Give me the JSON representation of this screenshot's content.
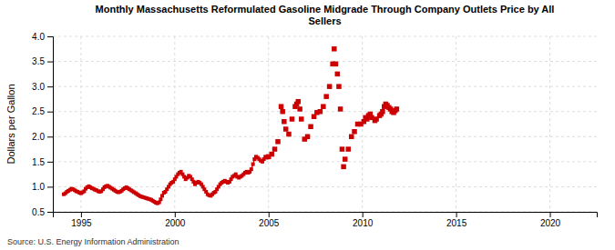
{
  "chart_data": {
    "type": "line",
    "title": "Monthly Massachusetts Reformulated Gasoline Midgrade Through Company Outlets Price by All\nSellers",
    "y_label": "Dollars per Gallon",
    "source": "Source: U.S. Energy Information Administration",
    "xlim": [
      1993.5,
      2022.5
    ],
    "ylim": [
      0.5,
      4.0
    ],
    "xticks": [
      1995,
      2000,
      2005,
      2010,
      2015,
      2020
    ],
    "yticks": [
      0.5,
      {
        "value": 1.0,
        "label": "1.0"
      },
      1.5,
      {
        "value": 2.0,
        "label": "2.0"
      },
      2.5,
      {
        "value": 3.0,
        "label": "3.0"
      },
      3.5,
      {
        "value": 4.0,
        "label": "4.0"
      }
    ],
    "grid": true,
    "series": [
      {
        "type": "line",
        "color": "#cc0000",
        "marker": "square",
        "line_style": "solid",
        "x": [
          1994.08,
          1994.17,
          1994.25,
          1994.33,
          1994.42,
          1994.5,
          1994.58,
          1994.67,
          1994.75,
          1994.83,
          1994.92,
          1995.0,
          1995.08,
          1995.17,
          1995.25,
          1995.33,
          1995.42,
          1995.5,
          1995.58,
          1995.67,
          1995.75,
          1995.83,
          1995.92,
          1996.0,
          1996.08,
          1996.17,
          1996.25,
          1996.33,
          1996.42,
          1996.5,
          1996.58,
          1996.67,
          1996.75,
          1996.83,
          1996.92,
          1997.0,
          1997.08,
          1997.17,
          1997.25,
          1997.33,
          1997.42,
          1997.5,
          1997.58,
          1997.67,
          1997.75,
          1997.83,
          1997.92,
          1998.0,
          1998.08,
          1998.17,
          1998.25,
          1998.33,
          1998.42,
          1998.5,
          1998.58,
          1998.67,
          1998.75,
          1998.83,
          1998.92,
          1999.0,
          1999.08,
          1999.17,
          1999.25,
          1999.33,
          1999.42,
          1999.5,
          1999.58,
          1999.67,
          1999.75,
          1999.83,
          1999.92,
          2000.0,
          2000.08,
          2000.17,
          2000.25,
          2000.33,
          2000.42,
          2000.5,
          2000.58,
          2000.67,
          2000.75,
          2000.83,
          2000.92,
          2001.0,
          2001.08,
          2001.17,
          2001.25,
          2001.33,
          2001.42,
          2001.5,
          2001.58,
          2001.67,
          2001.75,
          2001.83,
          2001.92,
          2002.0,
          2002.08,
          2002.17,
          2002.25,
          2002.33,
          2002.42,
          2002.5,
          2002.58,
          2002.67,
          2002.75,
          2002.83,
          2002.92,
          2003.0,
          2003.08,
          2003.17,
          2003.25,
          2003.33,
          2003.42,
          2003.5,
          2003.58,
          2003.67,
          2003.75,
          2003.83,
          2003.92,
          2004.0,
          2004.08,
          2004.17,
          2004.25,
          2004.33,
          2004.42,
          2004.5,
          2004.58,
          2004.67,
          2004.75,
          2004.83,
          2004.92
        ],
        "values": [
          0.85,
          0.87,
          0.9,
          0.92,
          0.94,
          0.96,
          0.95,
          0.93,
          0.91,
          0.9,
          0.88,
          0.87,
          0.89,
          0.91,
          0.96,
          0.99,
          1.01,
          0.99,
          0.97,
          0.96,
          0.94,
          0.93,
          0.91,
          0.9,
          0.91,
          0.95,
          0.99,
          1.01,
          1.02,
          1.0,
          0.98,
          0.96,
          0.94,
          0.92,
          0.9,
          0.89,
          0.9,
          0.92,
          0.95,
          0.97,
          0.99,
          0.97,
          0.95,
          0.93,
          0.91,
          0.89,
          0.87,
          0.85,
          0.83,
          0.81,
          0.8,
          0.79,
          0.78,
          0.77,
          0.76,
          0.75,
          0.74,
          0.72,
          0.7,
          0.68,
          0.67,
          0.69,
          0.75,
          0.82,
          0.88,
          0.9,
          0.95,
          1.0,
          1.05,
          1.08,
          1.1,
          1.15,
          1.2,
          1.25,
          1.28,
          1.3,
          1.25,
          1.2,
          1.15,
          1.18,
          1.22,
          1.2,
          1.15,
          1.1,
          1.05,
          1.08,
          1.1,
          1.08,
          1.05,
          1.0,
          0.95,
          0.9,
          0.85,
          0.83,
          0.82,
          0.85,
          0.88,
          0.9,
          0.95,
          1.0,
          1.05,
          1.08,
          1.1,
          1.12,
          1.1,
          1.08,
          1.1,
          1.15,
          1.2,
          1.22,
          1.25,
          1.2,
          1.18,
          1.2,
          1.22,
          1.25,
          1.28,
          1.3,
          1.28,
          1.3,
          1.35,
          1.45,
          1.55,
          1.6,
          1.58,
          1.55,
          1.52,
          1.5,
          1.55,
          1.6,
          1.58
        ]
      },
      {
        "type": "scatter",
        "color": "#cc0000",
        "marker": "square",
        "line_style": "none",
        "x": [
          2005.0,
          2005.17,
          2005.33,
          2005.5,
          2005.67,
          2005.75,
          2005.83,
          2005.92,
          2006.08,
          2006.25,
          2006.42,
          2006.5,
          2006.58,
          2006.67,
          2006.75,
          2006.92,
          2007.08,
          2007.25,
          2007.42,
          2007.58,
          2007.75,
          2007.92,
          2008.08,
          2008.25,
          2008.42,
          2008.5,
          2008.58,
          2008.67,
          2008.75,
          2008.83,
          2008.92,
          2009.0,
          2009.08,
          2009.25,
          2009.42,
          2009.58,
          2009.75,
          2009.92,
          2010.08,
          2010.17,
          2010.25,
          2010.33,
          2010.42,
          2010.5,
          2010.67,
          2010.75,
          2010.92,
          2011.0,
          2011.08,
          2011.17,
          2011.25,
          2011.33,
          2011.42,
          2011.5,
          2011.58,
          2011.67,
          2011.75,
          2011.83
        ],
        "values": [
          1.6,
          1.65,
          1.75,
          1.9,
          2.6,
          2.5,
          2.3,
          2.15,
          2.05,
          2.35,
          2.6,
          2.65,
          2.7,
          2.55,
          2.35,
          1.95,
          2.0,
          2.2,
          2.4,
          2.48,
          2.5,
          2.6,
          2.8,
          3.0,
          3.45,
          3.75,
          3.45,
          3.25,
          3.0,
          2.55,
          1.75,
          1.4,
          1.55,
          1.75,
          2.0,
          2.1,
          2.25,
          2.25,
          2.3,
          2.38,
          2.35,
          2.42,
          2.45,
          2.38,
          2.32,
          2.35,
          2.42,
          2.45,
          2.5,
          2.6,
          2.65,
          2.62,
          2.58,
          2.55,
          2.5,
          2.48,
          2.52,
          2.55
        ]
      }
    ]
  }
}
